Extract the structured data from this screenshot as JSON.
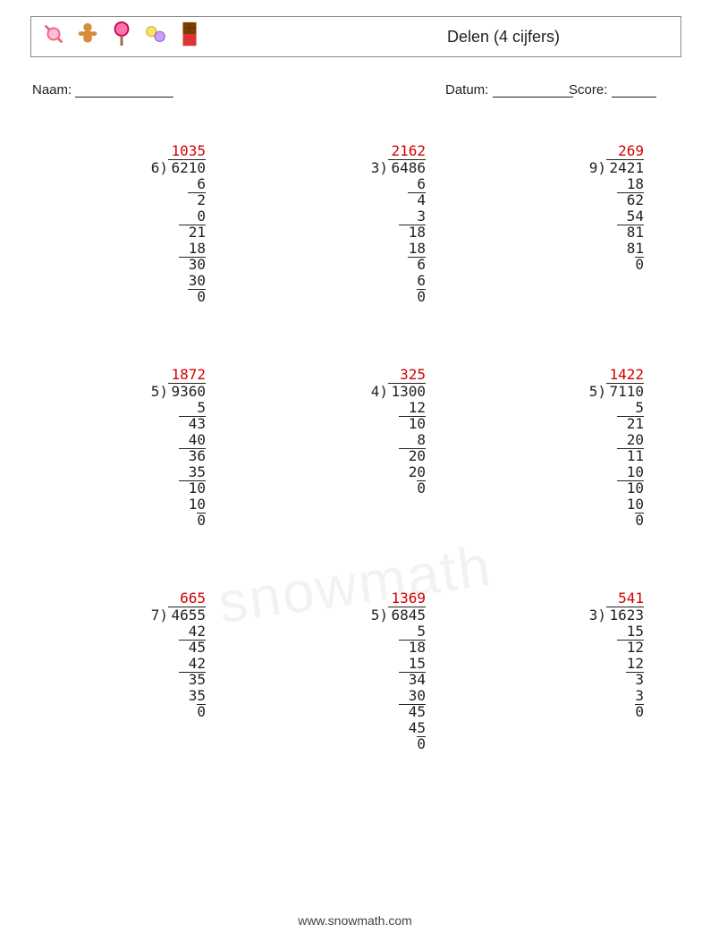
{
  "header": {
    "title": "Delen (4 cijfers)",
    "icons": [
      "candy",
      "gingerbread",
      "lollipop",
      "macarons",
      "chocolate"
    ]
  },
  "labels": {
    "name": "Naam:",
    "date": "Datum:",
    "score": "Score:",
    "name_line_w": 110,
    "date_line_w": 90,
    "score_line_w": 50
  },
  "layout": {
    "col_lefts": [
      110,
      356,
      600
    ],
    "row_tops": [
      0,
      250,
      500
    ],
    "problem_width": 120
  },
  "colors": {
    "quotient": "#d40000",
    "text": "#222222",
    "border": "#888888",
    "background": "#ffffff"
  },
  "font": {
    "size_pt": 12,
    "family": "monospace"
  },
  "problems": [
    {
      "row": 0,
      "col": 0,
      "divisor": "6",
      "dividend": "6210",
      "quotient": "1035",
      "work": [
        {
          "t": "6",
          "s": 0
        },
        {
          "t": "2",
          "s": 0,
          "bar": 2
        },
        {
          "t": "0",
          "s": 1
        },
        {
          "t": "21",
          "s": 0,
          "bar": 3
        },
        {
          "t": "18",
          "s": 1
        },
        {
          "t": "30",
          "s": 1,
          "bar": 3
        },
        {
          "t": "30",
          "s": 2
        },
        {
          "t": "0",
          "s": 2,
          "bar": 2
        }
      ]
    },
    {
      "row": 0,
      "col": 1,
      "divisor": "3",
      "dividend": "6486",
      "quotient": "2162",
      "work": [
        {
          "t": "6",
          "s": 0
        },
        {
          "t": "4",
          "s": 0,
          "bar": 2
        },
        {
          "t": "3",
          "s": 1
        },
        {
          "t": "18",
          "s": 0,
          "bar": 3
        },
        {
          "t": "18",
          "s": 1
        },
        {
          "t": "6",
          "s": 2,
          "bar": 2
        },
        {
          "t": "6",
          "s": 3
        },
        {
          "t": "0",
          "s": 3,
          "bar": 1
        }
      ]
    },
    {
      "row": 0,
      "col": 2,
      "divisor": "9",
      "dividend": "2421",
      "quotient": "269",
      "work": [
        {
          "t": "18",
          "s": 0
        },
        {
          "t": "62",
          "s": 0,
          "bar": 3
        },
        {
          "t": "54",
          "s": 1
        },
        {
          "t": "81",
          "s": 1,
          "bar": 3
        },
        {
          "t": "81",
          "s": 2
        },
        {
          "t": "0",
          "s": 3,
          "bar": 1
        }
      ]
    },
    {
      "row": 1,
      "col": 0,
      "divisor": "5",
      "dividend": "9360",
      "quotient": "1872",
      "work": [
        {
          "t": "5",
          "s": 0
        },
        {
          "t": "43",
          "s": 0,
          "bar": 3
        },
        {
          "t": "40",
          "s": 1
        },
        {
          "t": "36",
          "s": 1,
          "bar": 3
        },
        {
          "t": "35",
          "s": 2
        },
        {
          "t": "10",
          "s": 2,
          "bar": 3
        },
        {
          "t": "10",
          "s": 3
        },
        {
          "t": "0",
          "s": 4,
          "bar": 1
        }
      ]
    },
    {
      "row": 1,
      "col": 1,
      "divisor": "4",
      "dividend": "1300",
      "quotient": "325",
      "work": [
        {
          "t": "12",
          "s": 0
        },
        {
          "t": "10",
          "s": 0,
          "bar": 3
        },
        {
          "t": "8",
          "s": 2
        },
        {
          "t": "20",
          "s": 1,
          "bar": 3
        },
        {
          "t": "20",
          "s": 2
        },
        {
          "t": "0",
          "s": 3,
          "bar": 1
        }
      ]
    },
    {
      "row": 1,
      "col": 2,
      "divisor": "5",
      "dividend": "7110",
      "quotient": "1422",
      "work": [
        {
          "t": "5",
          "s": 0
        },
        {
          "t": "21",
          "s": 0,
          "bar": 3
        },
        {
          "t": "20",
          "s": 1
        },
        {
          "t": "11",
          "s": 1,
          "bar": 3
        },
        {
          "t": "10",
          "s": 2
        },
        {
          "t": "10",
          "s": 2,
          "bar": 3
        },
        {
          "t": "10",
          "s": 3
        },
        {
          "t": "0",
          "s": 4,
          "bar": 1
        }
      ]
    },
    {
      "row": 2,
      "col": 0,
      "divisor": "7",
      "dividend": "4655",
      "quotient": "665",
      "work": [
        {
          "t": "42",
          "s": 0
        },
        {
          "t": "45",
          "s": 0,
          "bar": 3
        },
        {
          "t": "42",
          "s": 1
        },
        {
          "t": "35",
          "s": 1,
          "bar": 3
        },
        {
          "t": "35",
          "s": 2
        },
        {
          "t": "0",
          "s": 3,
          "bar": 1
        }
      ]
    },
    {
      "row": 2,
      "col": 1,
      "divisor": "5",
      "dividend": "6845",
      "quotient": "1369",
      "work": [
        {
          "t": "5",
          "s": 0
        },
        {
          "t": "18",
          "s": 0,
          "bar": 3
        },
        {
          "t": "15",
          "s": 1
        },
        {
          "t": "34",
          "s": 1,
          "bar": 3
        },
        {
          "t": "30",
          "s": 2
        },
        {
          "t": "45",
          "s": 2,
          "bar": 3
        },
        {
          "t": "45",
          "s": 3
        },
        {
          "t": "0",
          "s": 4,
          "bar": 1
        }
      ]
    },
    {
      "row": 2,
      "col": 2,
      "divisor": "3",
      "dividend": "1623",
      "quotient": "541",
      "work": [
        {
          "t": "15",
          "s": 0
        },
        {
          "t": "12",
          "s": 0,
          "bar": 3
        },
        {
          "t": "12",
          "s": 1
        },
        {
          "t": "3",
          "s": 2,
          "bar": 2
        },
        {
          "t": "3",
          "s": 3
        },
        {
          "t": "0",
          "s": 3,
          "bar": 1
        }
      ]
    }
  ],
  "watermark": "snowmath",
  "footer_url": "www.snowmath.com"
}
